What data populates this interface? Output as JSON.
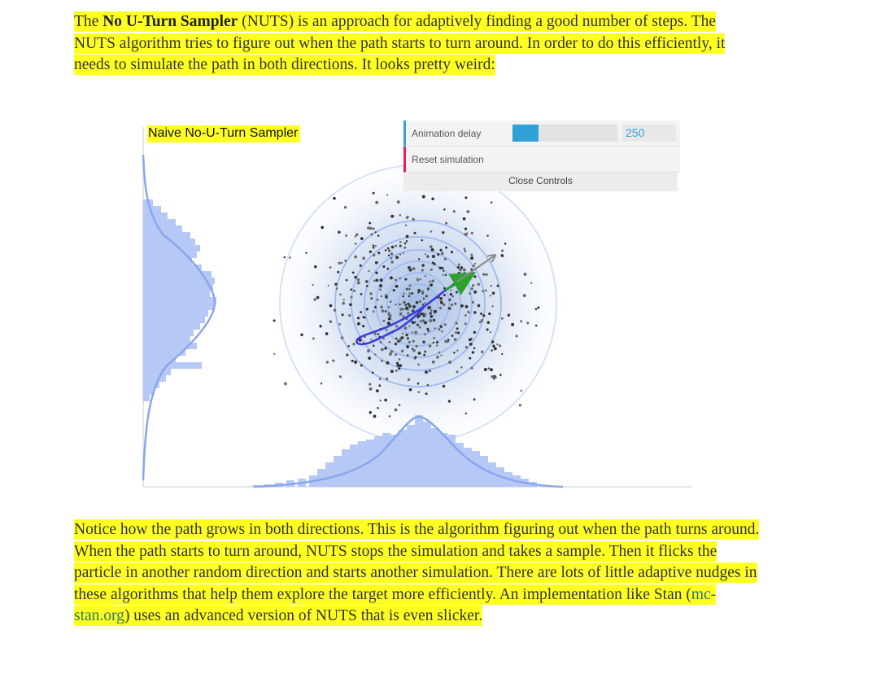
{
  "paragraph1": {
    "before": "The ",
    "bold": "No U-Turn Sampler",
    "after": " (NUTS) is an approach for adaptively finding a good number of steps. The NUTS algorithm tries to figure out when the path starts to turn around. In order to do this efficiently, it needs to simulate the path in both directions. It looks pretty weird:"
  },
  "visualization": {
    "title": "Naive No-U-Turn Sampler"
  },
  "controls": {
    "delay_label": "Animation delay",
    "delay_value": "250",
    "delay_fraction": 0.25,
    "reset_label": "Reset simulation",
    "close_label": "Close Controls",
    "colors": {
      "slider": "#2fa1d6",
      "reset_accent": "#e61d5f"
    }
  },
  "paragraph2": {
    "text_before_link": "Notice how the path grows in both directions. This is the algorithm figuring out when the path turns around. When the path starts to turn around, NUTS stops the simulation and takes a sample. Then it flicks the particle in another random direction and starts another simulation. There are lots of little adaptive nudges in these algorithms that help them explore the target more efficiently. An implementation like Stan (",
    "link": "mc-stan.org",
    "text_after_link": ") uses an advanced version of NUTS that is even slicker."
  },
  "colors": {
    "highlight": "#ffff22",
    "histogram": "#a9bff5",
    "density_curve": "#8aa6ec",
    "path": "#3b3fd6",
    "momentum_arrow": "#2ba32b",
    "direction_arrow": "#8a8a8a"
  }
}
